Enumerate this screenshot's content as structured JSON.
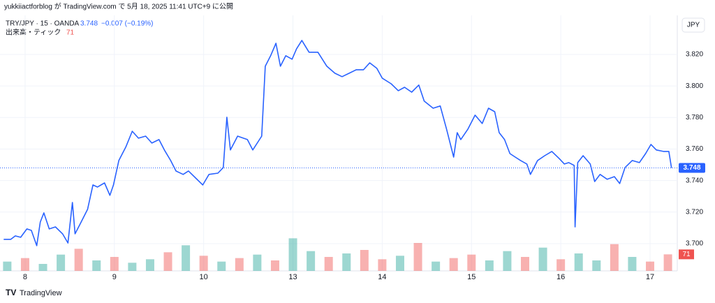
{
  "header": {
    "published": "yukkiiactforblog が TradingView.com で 5月 18, 2025 11:41 UTC+9 に公開",
    "symbol": "TRY/JPY · 15 · OANDA",
    "price": "3.748",
    "change": "−0.007 (−0.19%)",
    "volume_label": "出来高・ティック",
    "volume_value": "71",
    "currency": "JPY",
    "footer": "TradingView"
  },
  "chart_data": {
    "type": "line",
    "series": [
      {
        "name": "TRY/JPY",
        "color": "#2962ff",
        "x": [
          -0.24,
          -0.16,
          -0.11,
          -0.05,
          0.02,
          0.07,
          0.13,
          0.17,
          0.21,
          0.27,
          0.34,
          0.42,
          0.48,
          0.53,
          0.56,
          0.62,
          0.7,
          0.76,
          0.81,
          0.89,
          0.95,
          0.99,
          1.05,
          1.13,
          1.2,
          1.27,
          1.35,
          1.42,
          1.5,
          1.56,
          1.63,
          1.69,
          1.77,
          1.83,
          1.91,
          1.99,
          2.06,
          2.16,
          2.22,
          2.26,
          2.3,
          2.38,
          2.49,
          2.55,
          2.65,
          2.69,
          2.75,
          2.81,
          2.86,
          2.92,
          2.99,
          3.04,
          3.1,
          3.18,
          3.28,
          3.38,
          3.47,
          3.55,
          3.63,
          3.71,
          3.79,
          3.86,
          3.94,
          4.0,
          4.1,
          4.18,
          4.25,
          4.33,
          4.41,
          4.47,
          4.57,
          4.65,
          4.72,
          4.8,
          4.84,
          4.88,
          4.96,
          5.04,
          5.12,
          5.19,
          5.26,
          5.31,
          5.37,
          5.43,
          5.49,
          5.55,
          5.62,
          5.66,
          5.74,
          5.82,
          5.9,
          5.98,
          6.04,
          6.09,
          6.15,
          6.16,
          6.19,
          6.25,
          6.33,
          6.38,
          6.44,
          6.52,
          6.6,
          6.66,
          6.72,
          6.8,
          6.88,
          6.95,
          7.01,
          7.07,
          7.15,
          7.21,
          7.24
        ],
        "values": [
          3.7027,
          3.7027,
          3.7049,
          3.704,
          3.7093,
          3.7084,
          3.6987,
          3.7137,
          3.7195,
          3.7093,
          3.7106,
          3.7062,
          3.7004,
          3.7261,
          3.7062,
          3.7128,
          3.7217,
          3.7372,
          3.7359,
          3.7385,
          3.7306,
          3.7372,
          3.7527,
          3.7615,
          3.7713,
          3.7669,
          3.7682,
          3.7638,
          3.766,
          3.7594,
          3.7527,
          3.7461,
          3.7439,
          3.7461,
          3.7416,
          3.7372,
          3.7439,
          3.7447,
          3.7483,
          3.7802,
          3.7594,
          3.7682,
          3.766,
          3.7594,
          3.7682,
          3.8125,
          3.8192,
          3.8271,
          3.8125,
          3.8192,
          3.817,
          3.8236,
          3.8289,
          3.8214,
          3.8214,
          3.8125,
          3.8081,
          3.8059,
          3.8081,
          3.8103,
          3.8103,
          3.8147,
          3.8112,
          3.805,
          3.8014,
          3.797,
          3.7992,
          3.7961,
          3.8006,
          3.7904,
          3.7859,
          3.7873,
          3.7727,
          3.7549,
          3.7704,
          3.766,
          3.7727,
          3.7815,
          3.7762,
          3.7859,
          3.7837,
          3.7704,
          3.766,
          3.7571,
          3.7549,
          3.7527,
          3.7505,
          3.7439,
          3.7527,
          3.7558,
          3.7585,
          3.7541,
          3.7505,
          3.7514,
          3.7496,
          3.7106,
          3.7514,
          3.7558,
          3.7505,
          3.7394,
          3.7439,
          3.7408,
          3.7425,
          3.7381,
          3.7483,
          3.7527,
          3.7514,
          3.7571,
          3.7629,
          3.7594,
          3.7585,
          3.7585,
          3.748
        ]
      }
    ],
    "last": {
      "value": 3.748,
      "label": "3.748"
    },
    "volume": {
      "x": [
        -0.2,
        0.0,
        0.2,
        0.4,
        0.6,
        0.8,
        1.0,
        1.2,
        1.4,
        1.6,
        1.8,
        2.0,
        2.2,
        2.4,
        2.6,
        2.8,
        3.0,
        3.2,
        3.4,
        3.6,
        3.8,
        4.0,
        4.2,
        4.4,
        4.6,
        4.8,
        5.0,
        5.2,
        5.4,
        5.6,
        5.8,
        6.0,
        6.2,
        6.4,
        6.6,
        6.8,
        7.0,
        7.2
      ],
      "values": [
        40,
        55,
        30,
        70,
        95,
        45,
        60,
        35,
        50,
        80,
        110,
        65,
        40,
        55,
        70,
        45,
        140,
        85,
        60,
        75,
        90,
        50,
        65,
        120,
        40,
        55,
        70,
        45,
        85,
        60,
        100,
        50,
        75,
        45,
        115,
        60,
        40,
        71
      ],
      "colors": [
        "#26a69a",
        "#ef5350",
        "#26a69a",
        "#26a69a",
        "#ef5350",
        "#26a69a",
        "#ef5350",
        "#26a69a",
        "#26a69a",
        "#ef5350",
        "#26a69a",
        "#ef5350",
        "#26a69a",
        "#ef5350",
        "#26a69a",
        "#ef5350",
        "#26a69a",
        "#26a69a",
        "#ef5350",
        "#26a69a",
        "#ef5350",
        "#ef5350",
        "#26a69a",
        "#ef5350",
        "#26a69a",
        "#ef5350",
        "#ef5350",
        "#26a69a",
        "#26a69a",
        "#ef5350",
        "#26a69a",
        "#ef5350",
        "#26a69a",
        "#26a69a",
        "#ef5350",
        "#26a69a",
        "#ef5350",
        "#ef5350"
      ],
      "ylim": [
        0,
        300
      ]
    },
    "xlim": [
      -0.242,
      7.305
    ],
    "xticks": [
      {
        "value": 0,
        "label": "8"
      },
      {
        "value": 1,
        "label": "9"
      },
      {
        "value": 2,
        "label": "10"
      },
      {
        "value": 3,
        "label": "13"
      },
      {
        "value": 4,
        "label": "14"
      },
      {
        "value": 5,
        "label": "15"
      },
      {
        "value": 6,
        "label": "16"
      },
      {
        "value": 7,
        "label": "17"
      }
    ],
    "ylim": [
      3.6827,
      3.8448
    ],
    "yticks": [
      {
        "value": 3.7,
        "label": "3.700"
      },
      {
        "value": 3.72,
        "label": "3.720"
      },
      {
        "value": 3.74,
        "label": "3.740"
      },
      {
        "value": 3.76,
        "label": "3.760"
      },
      {
        "value": 3.78,
        "label": "3.780"
      },
      {
        "value": 3.8,
        "label": "3.800"
      },
      {
        "value": 3.82,
        "label": "3.820"
      }
    ],
    "grid": true
  }
}
